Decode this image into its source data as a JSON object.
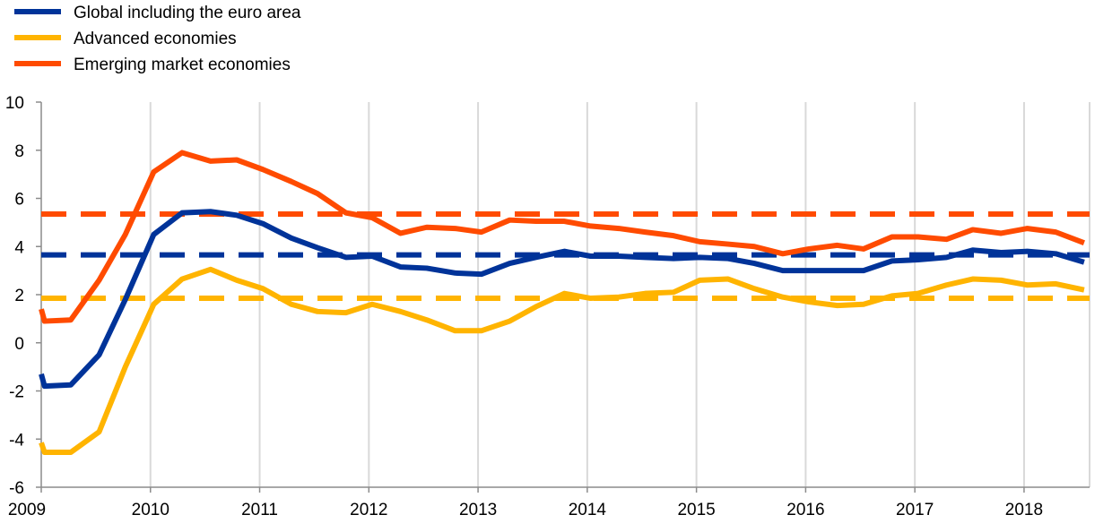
{
  "chart_data": {
    "type": "line",
    "title": "",
    "xlabel": "",
    "ylabel": "",
    "xlim": [
      2009.0,
      2018.6
    ],
    "ylim": [
      -6,
      10
    ],
    "y_ticks": [
      -6,
      -4,
      -2,
      0,
      2,
      4,
      6,
      8,
      10
    ],
    "x_ticks": [
      2009,
      2010,
      2011,
      2012,
      2013,
      2014,
      2015,
      2016,
      2017,
      2018
    ],
    "grid": "vertical",
    "legend_position": "top-left",
    "x": [
      2009.0,
      2009.03,
      2009.27,
      2009.53,
      2009.77,
      2010.03,
      2010.29,
      2010.55,
      2010.79,
      2011.03,
      2011.29,
      2011.53,
      2011.79,
      2012.03,
      2012.29,
      2012.53,
      2012.79,
      2013.03,
      2013.29,
      2013.53,
      2013.79,
      2014.03,
      2014.29,
      2014.53,
      2014.79,
      2015.03,
      2015.29,
      2015.53,
      2015.79,
      2016.03,
      2016.29,
      2016.53,
      2016.79,
      2017.03,
      2017.29,
      2017.53,
      2017.79,
      2018.03,
      2018.29,
      2018.55
    ],
    "series": [
      {
        "name": "Global including the euro area",
        "color": "#003399",
        "values": [
          -1.3,
          -1.8,
          -1.75,
          -0.5,
          1.8,
          4.5,
          5.4,
          5.45,
          5.3,
          4.95,
          4.35,
          3.95,
          3.55,
          3.6,
          3.15,
          3.1,
          2.9,
          2.85,
          3.3,
          3.55,
          3.8,
          3.6,
          3.6,
          3.55,
          3.5,
          3.55,
          3.5,
          3.3,
          3.0,
          3.0,
          3.0,
          3.0,
          3.4,
          3.45,
          3.55,
          3.85,
          3.75,
          3.8,
          3.7,
          3.35
        ]
      },
      {
        "name": "Advanced economies",
        "color": "#ffb400",
        "values": [
          -4.15,
          -4.55,
          -4.55,
          -3.7,
          -1.0,
          1.6,
          2.65,
          3.05,
          2.6,
          2.25,
          1.6,
          1.3,
          1.25,
          1.6,
          1.3,
          0.95,
          0.5,
          0.5,
          0.9,
          1.5,
          2.05,
          1.85,
          1.9,
          2.05,
          2.1,
          2.6,
          2.65,
          2.25,
          1.9,
          1.7,
          1.55,
          1.6,
          1.95,
          2.05,
          2.4,
          2.65,
          2.6,
          2.4,
          2.45,
          2.2
        ]
      },
      {
        "name": "Emerging market economies",
        "color": "#ff4b00",
        "values": [
          1.4,
          0.9,
          0.95,
          2.6,
          4.5,
          7.1,
          7.9,
          7.55,
          7.6,
          7.2,
          6.7,
          6.2,
          5.4,
          5.2,
          4.55,
          4.8,
          4.75,
          4.6,
          5.1,
          5.05,
          5.05,
          4.85,
          4.75,
          4.6,
          4.45,
          4.2,
          4.1,
          4.0,
          3.7,
          3.9,
          4.05,
          3.9,
          4.4,
          4.4,
          4.3,
          4.7,
          4.55,
          4.75,
          4.6,
          4.15
        ]
      }
    ],
    "averages": [
      {
        "series": "Global including the euro area",
        "color": "#003399",
        "value": 3.65
      },
      {
        "series": "Advanced economies",
        "color": "#ffb400",
        "value": 1.85
      },
      {
        "series": "Emerging market economies",
        "color": "#ff4b00",
        "value": 5.35
      }
    ]
  }
}
